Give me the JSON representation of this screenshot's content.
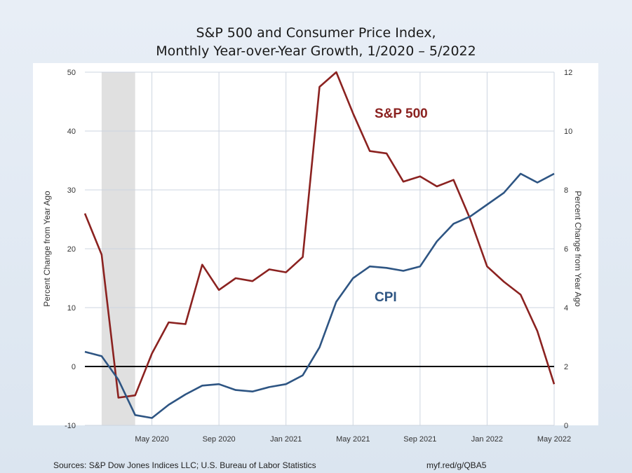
{
  "chart_data": {
    "type": "line",
    "title_line1": "S&P 500 and Consumer Price Index,",
    "title_line2": "Monthly Year-over-Year Growth, 1/2020  – 5/2022",
    "ylabel_left": "Percent Change from Year Ago",
    "ylabel_right": "Percent Change from Year Ago",
    "ylim_left": [
      -10,
      50
    ],
    "ylim_right": [
      0,
      12
    ],
    "yticks_left": [
      "-10",
      "0",
      "10",
      "20",
      "30",
      "40",
      "50"
    ],
    "yticks_right": [
      "0",
      "2",
      "4",
      "6",
      "8",
      "10",
      "12"
    ],
    "x_tick_labels": [
      "May 2020",
      "Sep 2020",
      "Jan 2021",
      "May 2021",
      "Sep 2021",
      "Jan 2022",
      "May 2022"
    ],
    "x_months": [
      "2020-01",
      "2020-02",
      "2020-03",
      "2020-04",
      "2020-05",
      "2020-06",
      "2020-07",
      "2020-08",
      "2020-09",
      "2020-10",
      "2020-11",
      "2020-12",
      "2021-01",
      "2021-02",
      "2021-03",
      "2021-04",
      "2021-05",
      "2021-06",
      "2021-07",
      "2021-08",
      "2021-09",
      "2021-10",
      "2021-11",
      "2021-12",
      "2022-01",
      "2022-02",
      "2022-03",
      "2022-04",
      "2022-05"
    ],
    "recession_shading": [
      "2020-02",
      "2020-04"
    ],
    "zero_line": 0,
    "grid": true,
    "series": [
      {
        "name": "S&P 500",
        "axis": "left",
        "color": "#8b2220",
        "values": [
          26.0,
          19.0,
          -5.3,
          -4.9,
          2.2,
          7.5,
          7.2,
          17.3,
          13.0,
          15.0,
          14.5,
          16.5,
          16.0,
          18.6,
          47.5,
          50.0,
          43.0,
          36.6,
          36.2,
          31.4,
          32.3,
          30.6,
          31.7,
          25.0,
          17.0,
          14.4,
          12.2,
          6.0,
          -3.0
        ]
      },
      {
        "name": "CPI",
        "axis": "right",
        "color": "#2e5583",
        "values": [
          2.5,
          2.35,
          1.55,
          0.35,
          0.25,
          0.7,
          1.05,
          1.35,
          1.4,
          1.2,
          1.15,
          1.3,
          1.4,
          1.7,
          2.65,
          4.2,
          5.0,
          5.4,
          5.35,
          5.25,
          5.4,
          6.25,
          6.85,
          7.1,
          7.5,
          7.9,
          8.55,
          8.25,
          8.55
        ]
      }
    ],
    "annotations": [
      {
        "text": "S&P 500",
        "color": "#8b2220"
      },
      {
        "text": "CPI",
        "color": "#2e5583"
      }
    ]
  },
  "footer": {
    "sources": "Sources: S&P Dow Jones Indices LLC; U.S. Bureau of Labor Statistics",
    "link": "myf.red/g/QBA5"
  },
  "colors": {
    "plot_background": "#ffffff",
    "grid": "#cdd5e0",
    "recession": "#e0e0e0",
    "zero_line": "#000000"
  }
}
